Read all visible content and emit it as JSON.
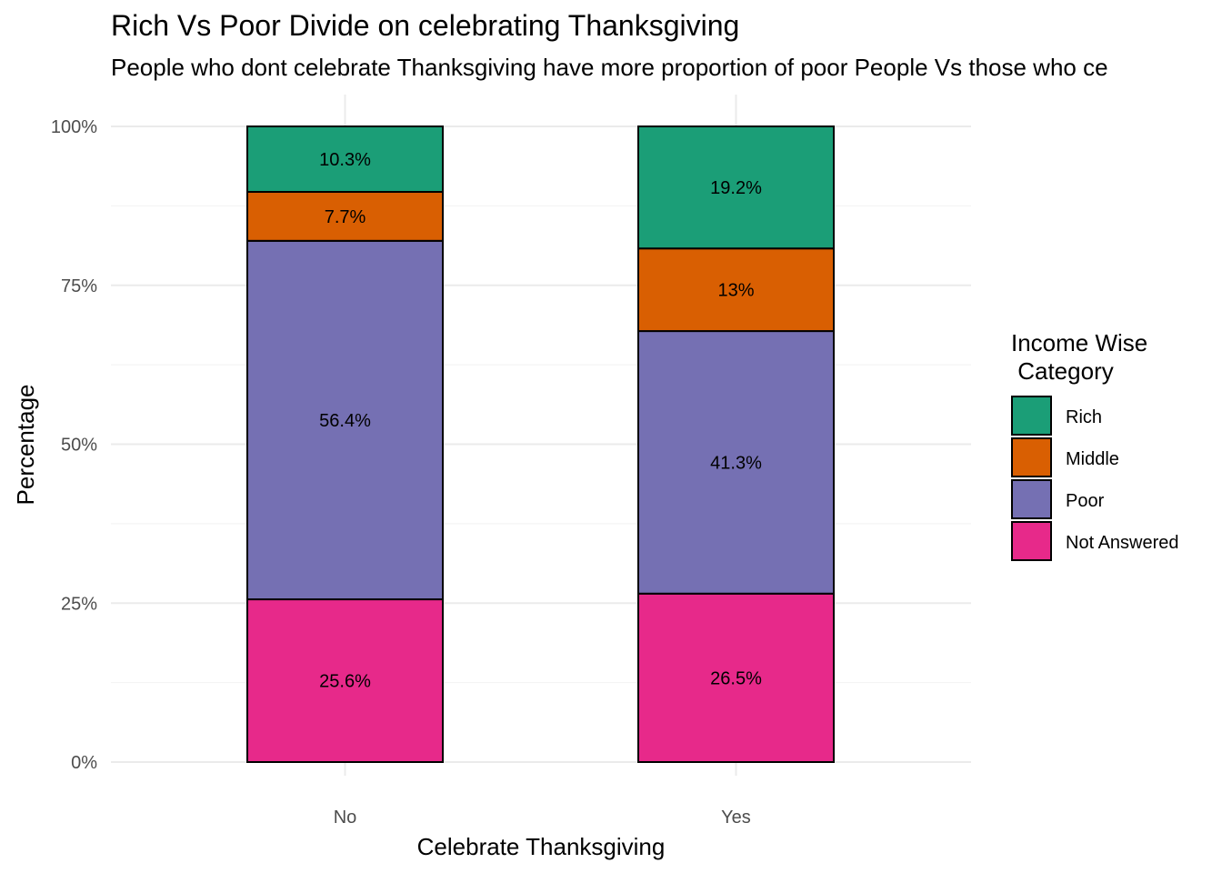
{
  "chart_data": {
    "type": "bar",
    "stacked": true,
    "title": "Rich Vs Poor Divide on celebrating Thanksgiving",
    "subtitle": "People who dont celebrate Thanksgiving have more proportion of poor People Vs those who ce",
    "xlabel": "Celebrate Thanksgiving",
    "ylabel": "Percentage",
    "ylim": [
      0,
      100
    ],
    "yticks": [
      0,
      25,
      50,
      75,
      100
    ],
    "ytick_labels": [
      "0%",
      "25%",
      "50%",
      "75%",
      "100%"
    ],
    "categories": [
      "No",
      "Yes"
    ],
    "grid": true,
    "legend": {
      "title_line1": "Income Wise",
      "title_line2": " Category",
      "position": "right"
    },
    "series": [
      {
        "name": "Rich",
        "color": "#1b9e77",
        "values": [
          10.3,
          19.2
        ],
        "labels": [
          "10.3%",
          "19.2%"
        ]
      },
      {
        "name": "Middle",
        "color": "#d95f02",
        "values": [
          7.7,
          13.0
        ],
        "labels": [
          "7.7%",
          "13%"
        ]
      },
      {
        "name": "Poor",
        "color": "#7570b3",
        "values": [
          56.4,
          41.3
        ],
        "labels": [
          "56.4%",
          "41.3%"
        ]
      },
      {
        "name": "Not Answered",
        "color": "#e7298a",
        "values": [
          25.6,
          26.5
        ],
        "labels": [
          "25.6%",
          "26.5%"
        ]
      }
    ]
  }
}
